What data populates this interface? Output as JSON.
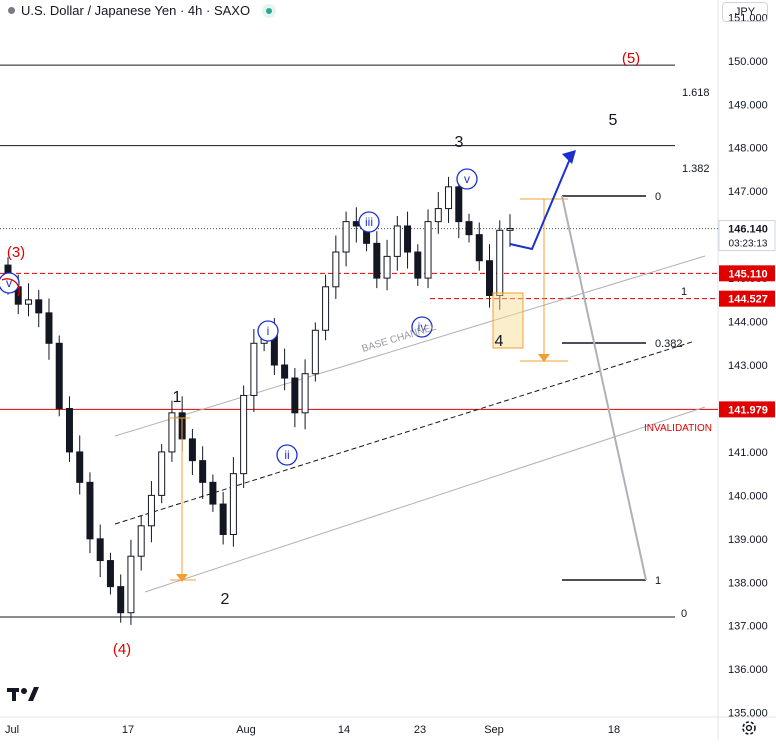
{
  "header": {
    "title": "U.S. Dollar / Japanese Yen · 4h · SAXO",
    "currency": "JPY"
  },
  "colors": {
    "red": "#e00000",
    "blue": "#1a2fd0",
    "orange": "#f0a030",
    "gray": "#b0b0b8",
    "candle": "#131722"
  },
  "chart_data": {
    "type": "candlestick",
    "y_axis": {
      "min": 134.9,
      "max": 151.4,
      "ticks": [
        "135.000",
        "136.000",
        "137.000",
        "138.000",
        "139.000",
        "140.000",
        "141.000",
        "142.000",
        "143.000",
        "144.000",
        "145.000",
        "146.000",
        "147.000",
        "148.000",
        "149.000",
        "150.000",
        "151.000"
      ]
    },
    "x_axis": {
      "tick_labels": [
        "Jul",
        "17",
        "Aug",
        "14",
        "23",
        "Sep",
        "18"
      ]
    },
    "series": [
      {
        "name": "USDJPY",
        "close": [
          144.8,
          144.4,
          144.5,
          144.2,
          143.5,
          142.0,
          141.0,
          140.3,
          139.0,
          138.5,
          137.9,
          137.3,
          138.6,
          139.3,
          140.0,
          141.0,
          141.9,
          141.3,
          140.8,
          140.3,
          139.8,
          139.1,
          140.5,
          142.3,
          143.5,
          143.8,
          143.0,
          142.7,
          141.9,
          142.8,
          143.8,
          144.8,
          145.6,
          146.3,
          146.2,
          145.8,
          145.0,
          145.5,
          146.2,
          145.6,
          145.0,
          146.3,
          146.6,
          147.1,
          146.3,
          146.0,
          145.4,
          144.6,
          146.1,
          146.14
        ]
      }
    ],
    "price_labels": [
      {
        "text": "146.140",
        "sub": "03:23:13"
      },
      {
        "text": "145.110"
      },
      {
        "text": "144.527"
      },
      {
        "text": "141.979"
      }
    ],
    "fib_labels": [
      "1.618",
      "1.382",
      "0",
      "1",
      "0.382",
      "1",
      "0"
    ],
    "wave_labels": {
      "red": [
        "(3)",
        "(4)",
        "(5)"
      ],
      "black": [
        "1",
        "2",
        "3",
        "4",
        "5"
      ],
      "circled": [
        "v",
        "i",
        "ii",
        "iii",
        "iv",
        "v"
      ]
    },
    "annotations": {
      "channel": "BASE CHANNEL",
      "invalidation": "INVALIDATION"
    }
  }
}
